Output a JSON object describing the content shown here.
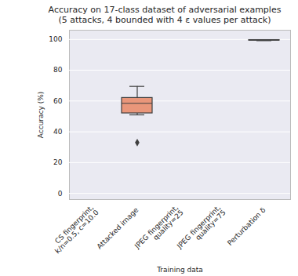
{
  "chart_data": {
    "type": "box",
    "title": "Accuracy on 17-class dataset of adversarial examples",
    "subtitle": "(5 attacks, 4 bounded with 4 ε values per attack)",
    "x_label": "Training data",
    "y_label": "Accuracy (%)",
    "categories": [
      "CS fingerprint,\nk/n=0.5, c=10.0",
      "Attacked image",
      "JPEG fingerprint,\nquality=25",
      "JPEG fingerprint,\nquality=75",
      "Perturbation δ"
    ],
    "boxes": [
      {
        "category": "Attacked image",
        "min": 51,
        "q1": 52,
        "median": 58.5,
        "q3": 62,
        "max": 69.5,
        "outliers": [
          33
        ],
        "color": "#E9967A"
      },
      {
        "category": "Perturbation δ",
        "min": 99.2,
        "q1": 99.3,
        "median": 99.5,
        "q3": 99.6,
        "max": 99.7,
        "outliers": [],
        "color": "#66C2A5"
      }
    ],
    "ylim": [
      -4,
      106
    ],
    "yticks": [
      0,
      20,
      40,
      60,
      80,
      100
    ],
    "grid": true
  }
}
